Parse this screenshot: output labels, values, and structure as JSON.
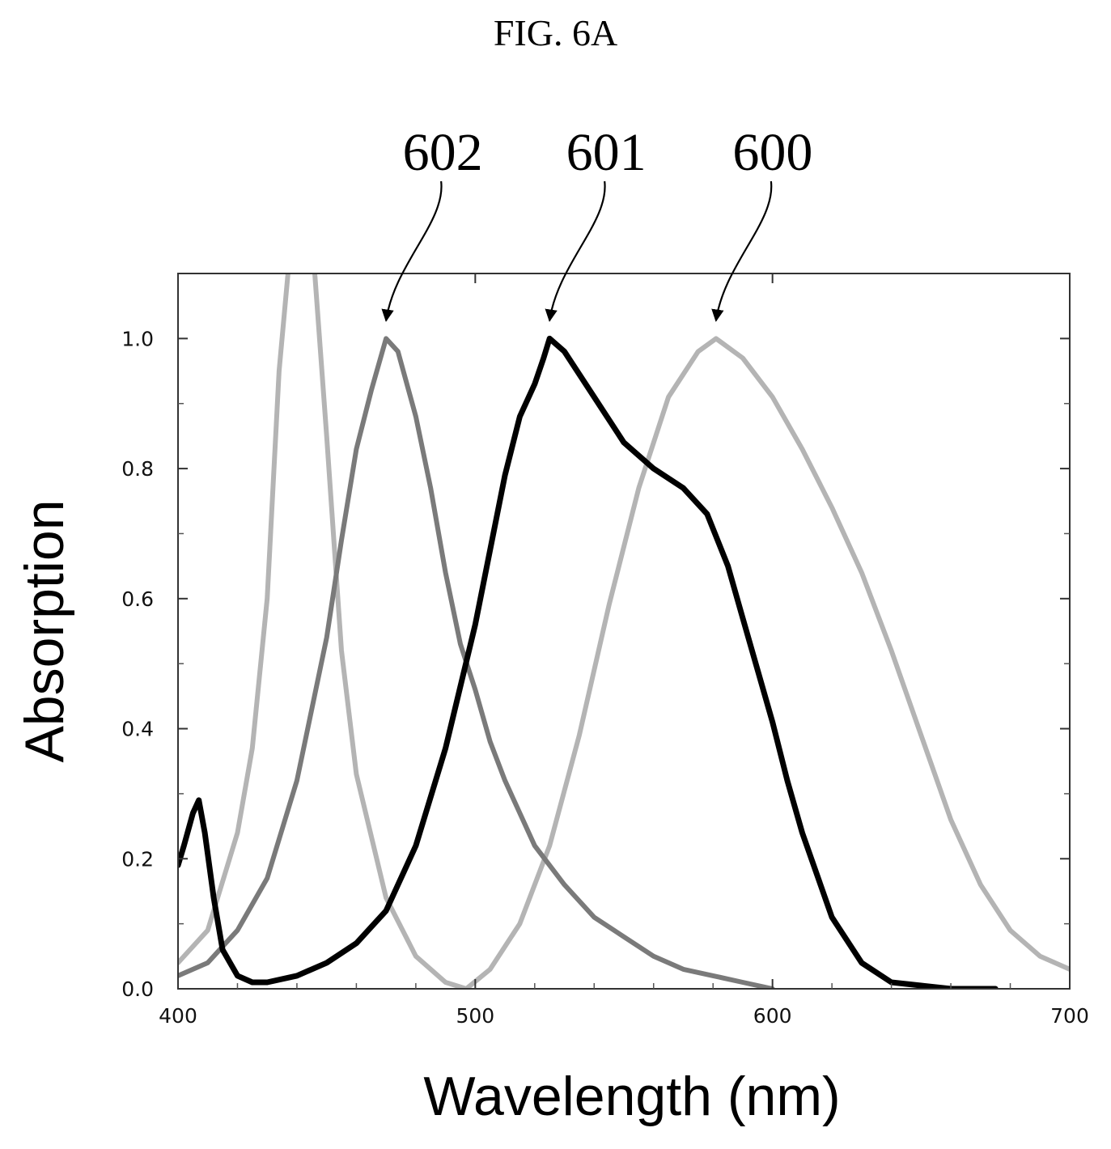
{
  "figure_title": "FIG. 6A",
  "chart_data": {
    "type": "line",
    "title": "",
    "xlabel": "Wavelength (nm)",
    "ylabel": "Absorption",
    "xlim": [
      400,
      700
    ],
    "ylim": [
      0.0,
      1.1
    ],
    "x_ticks": [
      400,
      500,
      600,
      700
    ],
    "y_ticks": [
      0.0,
      0.2,
      0.4,
      0.6,
      0.8,
      1.0
    ],
    "x_tick_labels": [
      "400",
      "500",
      "600",
      "700"
    ],
    "y_tick_labels": [
      "0.0",
      "0.2",
      "0.4",
      "0.6",
      "0.8",
      "1.0"
    ],
    "grid": false,
    "legend": "none",
    "series": [
      {
        "label": "600",
        "color": "#b4b4b4",
        "x": [
          400,
          410,
          420,
          425,
          430,
          434,
          437,
          440,
          446,
          450,
          455,
          460,
          470,
          480,
          490,
          497,
          505,
          515,
          525,
          535,
          545,
          555,
          565,
          575,
          581,
          590,
          600,
          610,
          620,
          630,
          640,
          650,
          660,
          670,
          680,
          690,
          700
        ],
        "y": [
          0.04,
          0.09,
          0.24,
          0.37,
          0.6,
          0.95,
          1.1,
          null,
          1.1,
          0.85,
          0.52,
          0.33,
          0.14,
          0.05,
          0.01,
          0.0,
          0.03,
          0.1,
          0.22,
          0.39,
          0.59,
          0.77,
          0.91,
          0.98,
          1.0,
          0.97,
          0.91,
          0.83,
          0.74,
          0.64,
          0.52,
          0.39,
          0.26,
          0.16,
          0.09,
          0.05,
          0.03
        ]
      },
      {
        "label": "602",
        "color": "#7a7a7a",
        "x": [
          400,
          410,
          420,
          430,
          440,
          450,
          455,
          460,
          465,
          470,
          474,
          480,
          485,
          490,
          495,
          500,
          505,
          510,
          520,
          530,
          540,
          550,
          560,
          570,
          580,
          590,
          600
        ],
        "y": [
          0.02,
          0.04,
          0.09,
          0.17,
          0.32,
          0.54,
          0.69,
          0.83,
          0.92,
          1.0,
          0.98,
          0.88,
          0.77,
          0.64,
          0.53,
          0.46,
          0.38,
          0.32,
          0.22,
          0.16,
          0.11,
          0.08,
          0.05,
          0.03,
          0.02,
          0.01,
          0.0
        ]
      },
      {
        "label": "601",
        "color": "#000000",
        "x": [
          400,
          402,
          405,
          407,
          409,
          412,
          415,
          420,
          425,
          430,
          440,
          450,
          460,
          470,
          480,
          490,
          500,
          510,
          515,
          520,
          523,
          525,
          530,
          540,
          550,
          560,
          570,
          578,
          585,
          590,
          595,
          600,
          605,
          610,
          620,
          630,
          640,
          650,
          660,
          675
        ],
        "y": [
          0.19,
          0.22,
          0.27,
          0.29,
          0.24,
          0.14,
          0.06,
          0.02,
          0.01,
          0.01,
          0.02,
          0.04,
          0.07,
          0.12,
          0.22,
          0.37,
          0.56,
          0.79,
          0.88,
          0.93,
          0.97,
          1.0,
          0.98,
          0.91,
          0.84,
          0.8,
          0.77,
          0.73,
          0.65,
          0.57,
          0.49,
          0.41,
          0.32,
          0.24,
          0.11,
          0.04,
          0.01,
          0.005,
          0.0,
          0.0
        ]
      }
    ],
    "annotations": [
      {
        "text": "602",
        "points_to": [
          470,
          1.0
        ]
      },
      {
        "text": "601",
        "points_to": [
          525,
          1.0
        ]
      },
      {
        "text": "600",
        "points_to": [
          581,
          1.0
        ]
      }
    ]
  }
}
